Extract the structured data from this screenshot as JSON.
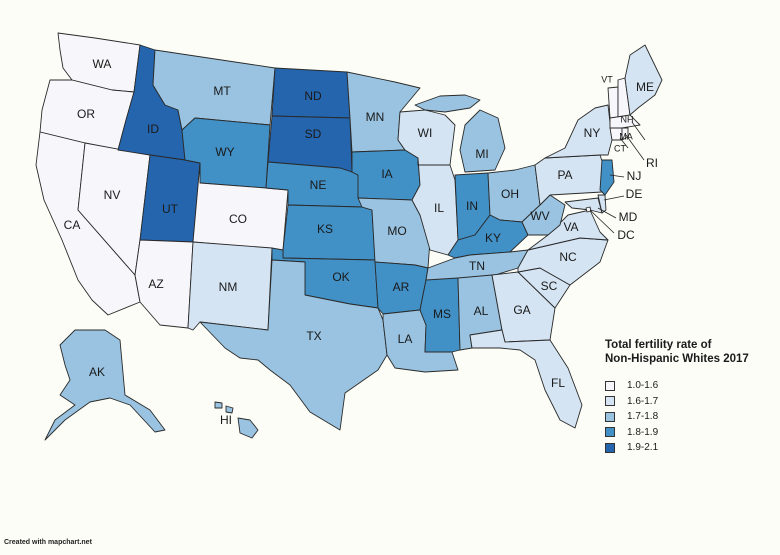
{
  "legend": {
    "title_line1": "Total fertility rate of",
    "title_line2": "Non-Hispanic Whites 2017",
    "items": [
      {
        "label": "1.0-1.6",
        "color": "#f7f7fb"
      },
      {
        "label": "1.6-1.7",
        "color": "#d4e4f3"
      },
      {
        "label": "1.7-1.8",
        "color": "#99c3e0"
      },
      {
        "label": "1.8-1.9",
        "color": "#4190c6"
      },
      {
        "label": "1.9-2.1",
        "color": "#2465ae"
      }
    ]
  },
  "credit": "Created with mapchart.net",
  "states": {
    "WA": 0,
    "OR": 0,
    "CA": 0,
    "NV": 0,
    "AZ": 0,
    "CO": 0,
    "ID": 4,
    "UT": 4,
    "ND": 4,
    "SD": 4,
    "MT": 2,
    "WY": 3,
    "NE": 3,
    "KS": 3,
    "OK": 3,
    "IA": 3,
    "AR": 3,
    "IN": 3,
    "KY": 3,
    "MS": 3,
    "NM": 1,
    "TX": 2,
    "MN": 2,
    "MO": 2,
    "LA": 2,
    "TN": 2,
    "AL": 2,
    "MI": 2,
    "OH": 2,
    "WV": 2,
    "AK": 2,
    "HI": 2,
    "NJ": 3,
    "WI": 1,
    "IL": 1,
    "GA": 1,
    "FL": 1,
    "SC": 1,
    "NC": 1,
    "VA": 1,
    "PA": 1,
    "NY": 1,
    "ME": 1,
    "DE": 1,
    "MD": 1,
    "VT": 0,
    "NH": 0,
    "MA": 0,
    "CT": 0,
    "RI": 0,
    "DC": 0
  }
}
